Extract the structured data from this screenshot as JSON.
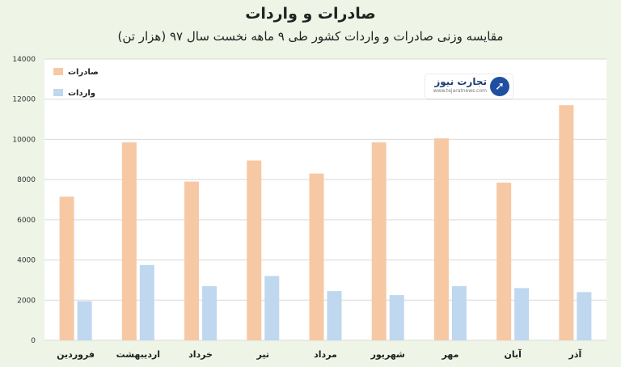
{
  "chart_data": {
    "type": "bar",
    "title": "صادرات و واردات",
    "subtitle": "مقایسه وزنی صادرات و واردات کشور طی ۹ ماهه نخست سال ۹۷ (هزار تن)",
    "categories": [
      "فروردین",
      "اردیبهشت",
      "خرداد",
      "تیر",
      "مرداد",
      "شهریور",
      "مهر",
      "آبان",
      "آذر"
    ],
    "series": [
      {
        "name": "صادرات",
        "values": [
          7150,
          9850,
          7900,
          8950,
          8300,
          9850,
          10050,
          7850,
          11700
        ],
        "color": "#f7c8a4"
      },
      {
        "name": "واردات",
        "values": [
          1950,
          3750,
          2700,
          3200,
          2450,
          2250,
          2700,
          2600,
          2400
        ],
        "color": "#bfd7ef"
      }
    ],
    "ylim": [
      0,
      14000
    ],
    "yticks": [
      0,
      2000,
      4000,
      6000,
      8000,
      10000,
      12000,
      14000
    ],
    "ytick_labels": [
      "0",
      "2000",
      "4000",
      "6000",
      "8000",
      "10000",
      "12000",
      "14000"
    ],
    "grid": true,
    "legend_position": "top-left"
  },
  "watermark": {
    "brand": "تجارت نیوز",
    "url": "www.tejaratnews.com"
  },
  "colors": {
    "background": "#eef5e6",
    "plot_background": "#ffffff",
    "grid": "#d9d9d9"
  }
}
